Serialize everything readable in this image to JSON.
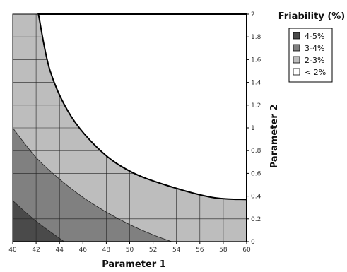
{
  "chart_data": {
    "type": "contour",
    "title": "",
    "xlabel": "Parameter 1",
    "ylabel": "Parameter 2",
    "xlim": [
      40,
      60
    ],
    "ylim": [
      0,
      2
    ],
    "x_ticks": [
      40,
      42,
      44,
      46,
      48,
      50,
      52,
      54,
      56,
      58,
      60
    ],
    "y_ticks": [
      0,
      0.2,
      0.4,
      0.6,
      0.8,
      1,
      1.2,
      1.4,
      1.6,
      1.8,
      2
    ],
    "x_tick_labels": [
      "40",
      "42",
      "44",
      "46",
      "48",
      "50",
      "52",
      "54",
      "56",
      "58",
      "60"
    ],
    "y_tick_labels": [
      "0",
      "0.2",
      "0.4",
      "0.6",
      "0.8",
      "1",
      "1.2",
      "1.4",
      "1.6",
      "1.8",
      "2"
    ],
    "grid": true,
    "y_axis_side": "right",
    "legend": {
      "title": "Friability (%)",
      "placement": "top-right",
      "entries": [
        {
          "label": "4-5%",
          "color": "#4a4a4a"
        },
        {
          "label": "3-4%",
          "color": "#808080"
        },
        {
          "label": "2-3%",
          "color": "#bdbdbd"
        },
        {
          "label": "< 2%",
          "color": "#ffffff"
        }
      ]
    },
    "regions": [
      {
        "label": "4-5%",
        "color": "#4a4a4a",
        "boundary": [
          [
            40,
            0
          ],
          [
            40,
            0.36
          ],
          [
            42,
            0.18
          ],
          [
            44.4,
            0
          ]
        ]
      },
      {
        "label": "3-4%",
        "color": "#808080",
        "boundary": [
          [
            40,
            1.0
          ],
          [
            42,
            0.74
          ],
          [
            44,
            0.55
          ],
          [
            46,
            0.39
          ],
          [
            48,
            0.26
          ],
          [
            50,
            0.15
          ],
          [
            52,
            0.06
          ],
          [
            53.6,
            0
          ]
        ]
      },
      {
        "label": "< 2%",
        "color": "#ffffff",
        "boundary": [
          [
            42.2,
            2
          ],
          [
            43.2,
            1.5
          ],
          [
            45,
            1.1
          ],
          [
            47.5,
            0.8
          ],
          [
            50,
            0.62
          ],
          [
            53,
            0.5
          ],
          [
            57,
            0.39
          ],
          [
            60,
            0.37
          ]
        ]
      }
    ]
  }
}
